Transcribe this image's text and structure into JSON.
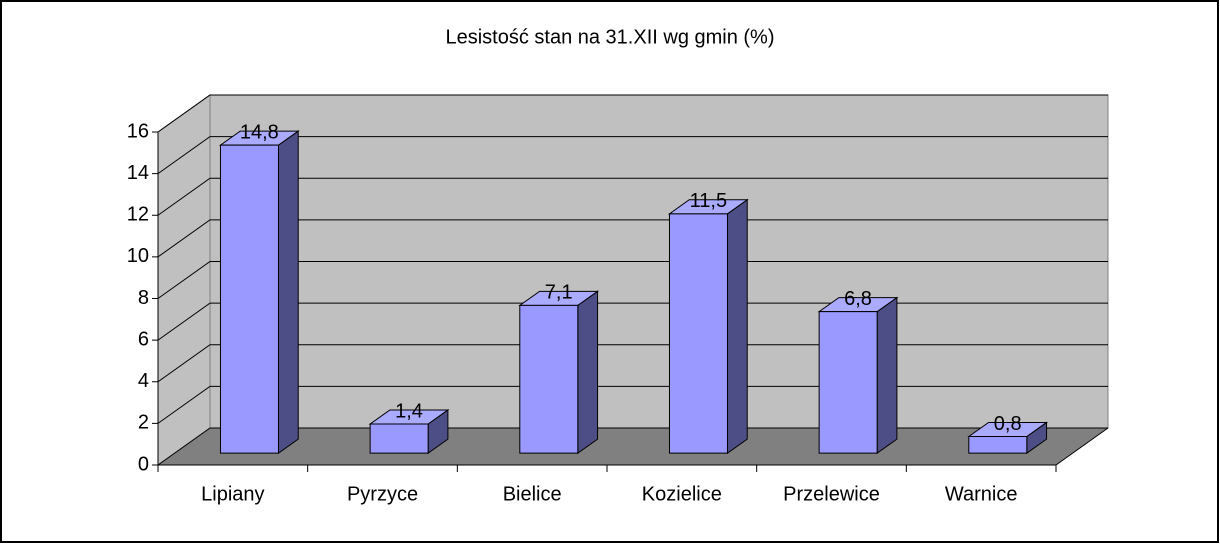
{
  "chart_data": {
    "type": "bar",
    "title": "Lesistość stan na 31.XII wg gmin (%)",
    "categories": [
      "Lipiany",
      "Pyrzyce",
      "Bielice",
      "Kozielice",
      "Przelewice",
      "Warnice"
    ],
    "values": [
      14.8,
      1.4,
      7.1,
      11.5,
      6.8,
      0.8
    ],
    "value_labels": [
      "14,8",
      "1,4",
      "7,1",
      "11,5",
      "6,8",
      "0,8"
    ],
    "color": "#9999ff",
    "ylim": [
      0,
      16
    ],
    "yticks": [
      0,
      2,
      4,
      6,
      8,
      10,
      12,
      14,
      16
    ],
    "grid": true
  }
}
